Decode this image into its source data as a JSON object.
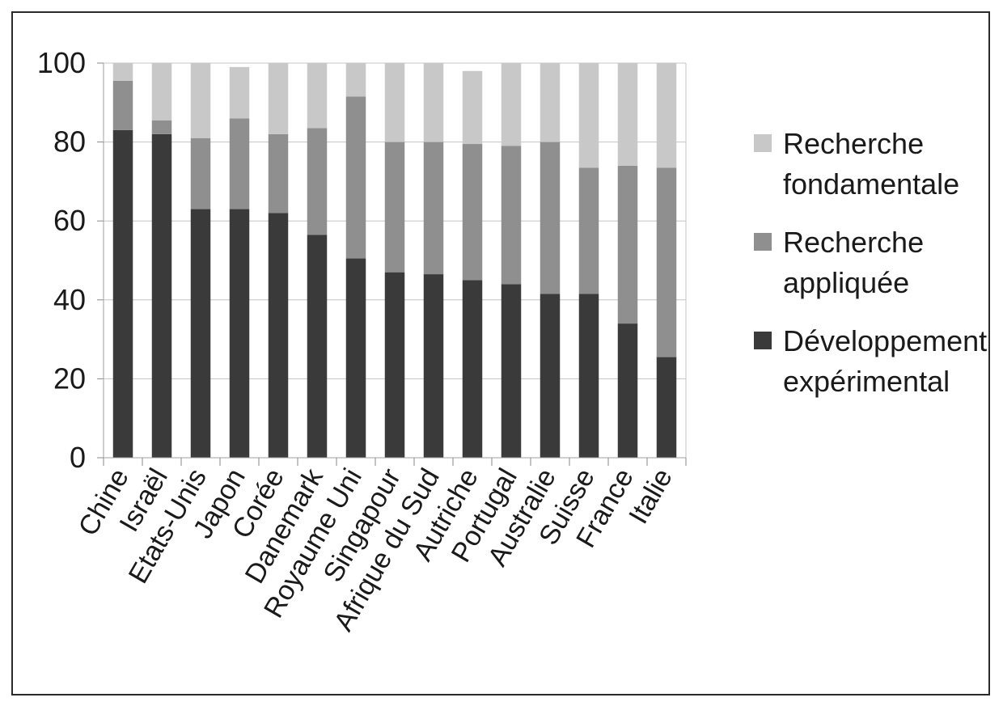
{
  "chart_data": {
    "type": "bar",
    "stacked": true,
    "title": "",
    "xlabel": "",
    "ylabel": "",
    "ylim": [
      0,
      100
    ],
    "yticks": [
      0,
      20,
      40,
      60,
      80,
      100
    ],
    "grid": true,
    "legend_position": "right",
    "categories": [
      "Chine",
      "Israël",
      "Etats-Unis",
      "Japon",
      "Corée",
      "Danemark",
      "Royaume Uni",
      "Singapour",
      "Afrique du Sud",
      "Autriche",
      "Portugal",
      "Australie",
      "Suisse",
      "France",
      "Italie"
    ],
    "series": [
      {
        "name": "Développement expérimental",
        "legend_lines": [
          "Développement",
          "expérimental"
        ],
        "color": "#3a3a3a",
        "values": [
          83,
          82,
          63,
          63,
          62,
          56.5,
          50.5,
          47,
          46.5,
          45,
          44,
          41.5,
          41.5,
          34,
          25.5
        ]
      },
      {
        "name": "Recherche appliquée",
        "legend_lines": [
          "Recherche",
          "appliquée"
        ],
        "color": "#8f8f8f",
        "values": [
          12.5,
          3.5,
          18,
          23,
          20,
          27,
          41,
          33,
          33.5,
          34.5,
          35,
          38.5,
          32,
          40,
          48
        ]
      },
      {
        "name": "Recherche fondamentale",
        "legend_lines": [
          "Recherche",
          "fondamentale"
        ],
        "color": "#c8c8c8",
        "values": [
          4.5,
          14.5,
          19,
          13,
          18,
          16.5,
          8.5,
          20,
          20,
          18.5,
          21,
          20,
          26.5,
          26,
          26.5
        ]
      }
    ]
  }
}
